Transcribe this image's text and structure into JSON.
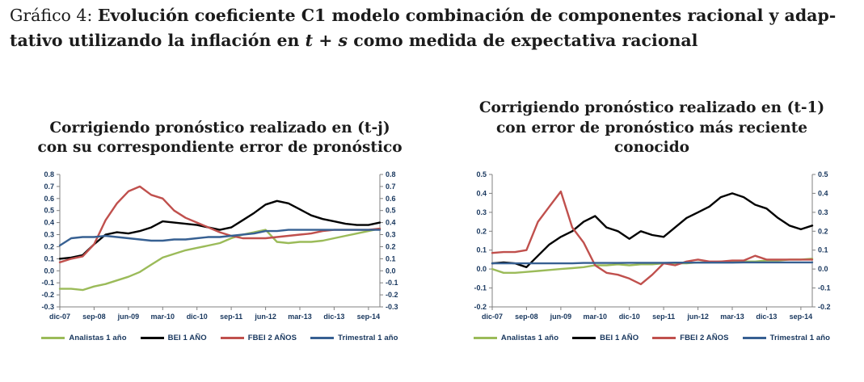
{
  "figure": {
    "caption_prefix": "Gráfico 4: ",
    "caption_line1_bold": "Evolución coeficiente C1 modelo combinación de componentes racional y adap-",
    "caption_line2_bold_a": "tativo utilizando la inflación en ",
    "caption_math": "t + s",
    "caption_line2_bold_b": " como medida de expectativa racional"
  },
  "colors": {
    "axis": "#808080",
    "tick_label": "#17365D",
    "series_green": "#9BBB59",
    "series_black": "#000000",
    "series_red": "#C0504D",
    "series_blue": "#376092"
  },
  "chart_data": [
    {
      "type": "line",
      "title_lines": [
        "Corrigiendo pronóstico realizado en (t-j)",
        "con su correspondiente error de pronóstico"
      ],
      "x_tick_labels": [
        "dic-07",
        "sep-08",
        "jun-09",
        "mar-10",
        "dic-10",
        "sep-11",
        "jun-12",
        "mar-13",
        "dic-13",
        "sep-14"
      ],
      "x_tick_index": [
        0,
        3,
        6,
        9,
        12,
        15,
        18,
        21,
        24,
        27
      ],
      "x_frequency": "quarterly",
      "ylim": [
        -0.3,
        0.8
      ],
      "yticks": [
        0.8,
        0.7,
        0.6,
        0.5,
        0.4,
        0.3,
        0.2,
        0.1,
        0.0,
        -0.1,
        -0.2,
        -0.3
      ],
      "grid": false,
      "legend_position": "bottom",
      "dual_y_axis_labels": true,
      "series": [
        {
          "name": "Analistas 1 año",
          "color": "#9BBB59",
          "values": [
            -0.15,
            -0.15,
            -0.16,
            -0.13,
            -0.11,
            -0.08,
            -0.05,
            -0.01,
            0.05,
            0.11,
            0.14,
            0.17,
            0.19,
            0.21,
            0.23,
            0.27,
            0.3,
            0.32,
            0.34,
            0.24,
            0.23,
            0.24,
            0.24,
            0.25,
            0.27,
            0.29,
            0.31,
            0.33,
            0.35
          ]
        },
        {
          "name": "BEI 1 AÑO",
          "color": "#000000",
          "values": [
            0.1,
            0.11,
            0.13,
            0.22,
            0.3,
            0.32,
            0.31,
            0.33,
            0.36,
            0.41,
            0.4,
            0.39,
            0.38,
            0.36,
            0.34,
            0.36,
            0.42,
            0.48,
            0.55,
            0.58,
            0.56,
            0.51,
            0.46,
            0.43,
            0.41,
            0.39,
            0.38,
            0.38,
            0.4
          ]
        },
        {
          "name": "FBEI 2 AÑOS",
          "color": "#C0504D",
          "values": [
            0.07,
            0.1,
            0.12,
            0.22,
            0.42,
            0.56,
            0.66,
            0.7,
            0.63,
            0.6,
            0.5,
            0.44,
            0.4,
            0.36,
            0.32,
            0.29,
            0.27,
            0.27,
            0.27,
            0.28,
            0.29,
            0.3,
            0.31,
            0.33,
            0.34,
            0.34,
            0.34,
            0.34,
            0.35
          ]
        },
        {
          "name": "Trimestral 1 año",
          "color": "#376092",
          "values": [
            0.21,
            0.27,
            0.28,
            0.28,
            0.29,
            0.28,
            0.27,
            0.26,
            0.25,
            0.25,
            0.26,
            0.26,
            0.27,
            0.28,
            0.28,
            0.29,
            0.3,
            0.31,
            0.33,
            0.33,
            0.34,
            0.34,
            0.34,
            0.34,
            0.34,
            0.34,
            0.34,
            0.34,
            0.34
          ]
        }
      ]
    },
    {
      "type": "line",
      "title_lines": [
        "Corrigiendo pronóstico realizado en (t-1)",
        "con error de pronóstico más reciente",
        "conocido"
      ],
      "x_tick_labels": [
        "dic-07",
        "sep-08",
        "jun-09",
        "mar-10",
        "dic-10",
        "sep-11",
        "jun-12",
        "mar-13",
        "dic-13",
        "sep-14"
      ],
      "x_tick_index": [
        0,
        3,
        6,
        9,
        12,
        15,
        18,
        21,
        24,
        27
      ],
      "x_frequency": "quarterly",
      "ylim": [
        -0.2,
        0.5
      ],
      "yticks": [
        0.5,
        0.4,
        0.3,
        0.2,
        0.1,
        0.0,
        -0.1,
        -0.2
      ],
      "grid": false,
      "legend_position": "bottom",
      "dual_y_axis_labels": true,
      "series": [
        {
          "name": "Analistas 1 año",
          "color": "#9BBB59",
          "values": [
            0.0,
            -0.02,
            -0.02,
            -0.015,
            -0.01,
            -0.005,
            0.0,
            0.005,
            0.01,
            0.02,
            0.02,
            0.025,
            0.02,
            0.025,
            0.025,
            0.03,
            0.03,
            0.03,
            0.035,
            0.035,
            0.04,
            0.04,
            0.04,
            0.04,
            0.045,
            0.045,
            0.05,
            0.05,
            0.055
          ]
        },
        {
          "name": "BEI 1 AÑO",
          "color": "#000000",
          "values": [
            0.03,
            0.035,
            0.03,
            0.01,
            0.07,
            0.13,
            0.17,
            0.2,
            0.25,
            0.28,
            0.22,
            0.2,
            0.16,
            0.2,
            0.18,
            0.17,
            0.22,
            0.27,
            0.3,
            0.33,
            0.38,
            0.4,
            0.38,
            0.34,
            0.32,
            0.27,
            0.23,
            0.21,
            0.23
          ]
        },
        {
          "name": "FBEI 2 AÑOS",
          "color": "#C0504D",
          "values": [
            0.085,
            0.09,
            0.09,
            0.1,
            0.25,
            0.33,
            0.41,
            0.22,
            0.14,
            0.02,
            -0.02,
            -0.03,
            -0.05,
            -0.08,
            -0.03,
            0.03,
            0.02,
            0.04,
            0.05,
            0.04,
            0.04,
            0.045,
            0.045,
            0.07,
            0.05,
            0.05,
            0.05,
            0.05,
            0.05
          ]
        },
        {
          "name": "Trimestral 1 año",
          "color": "#376092",
          "values": [
            0.03,
            0.03,
            0.03,
            0.03,
            0.03,
            0.03,
            0.03,
            0.03,
            0.032,
            0.032,
            0.032,
            0.032,
            0.033,
            0.033,
            0.033,
            0.033,
            0.034,
            0.034,
            0.034,
            0.034,
            0.034,
            0.034,
            0.035,
            0.035,
            0.035,
            0.035,
            0.035,
            0.035,
            0.035
          ]
        }
      ]
    }
  ]
}
